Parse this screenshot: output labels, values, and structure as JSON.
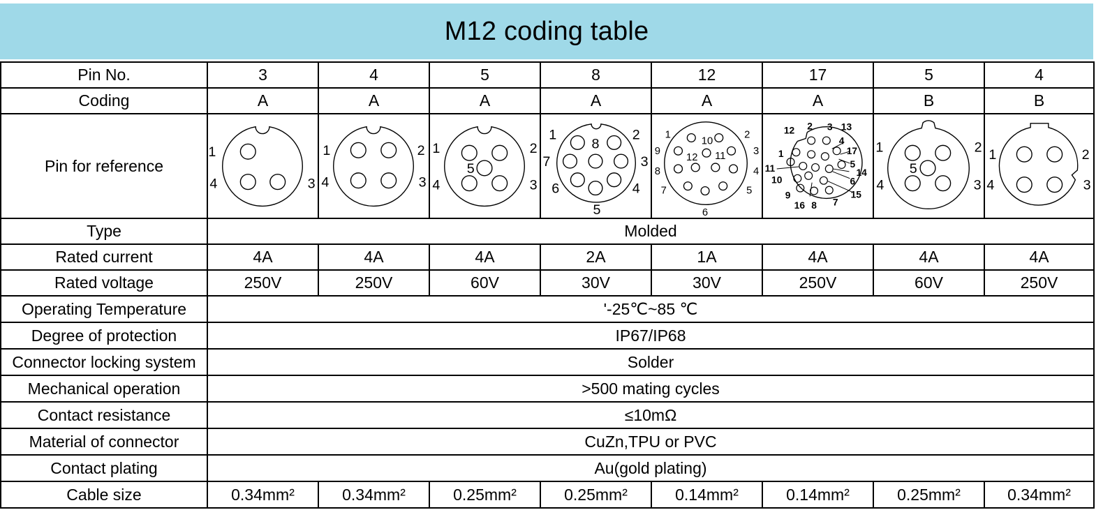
{
  "title": "M12 coding table",
  "rows": {
    "pin_no": {
      "label": "Pin No.",
      "values": [
        "3",
        "4",
        "5",
        "8",
        "12",
        "17",
        "5",
        "4"
      ]
    },
    "coding": {
      "label": "Coding",
      "values": [
        "A",
        "A",
        "A",
        "A",
        "A",
        "A",
        "B",
        "B"
      ]
    },
    "pin_ref": {
      "label": "Pin for reference",
      "diagrams": [
        {
          "outer": [
            "1",
            "4",
            "3"
          ]
        },
        {
          "outer": [
            "1",
            "2",
            "4",
            "3"
          ]
        },
        {
          "outer": [
            "1",
            "2",
            "4",
            "3"
          ],
          "inner": [
            "5"
          ]
        },
        {
          "outer": [
            "1",
            "2",
            "7",
            "3",
            "6",
            "4",
            "5"
          ],
          "inner": [
            "8"
          ]
        },
        {
          "outer": [
            "1",
            "2",
            "9",
            "3",
            "8",
            "4",
            "7",
            "5",
            "6"
          ],
          "inner": [
            "10",
            "12",
            "11"
          ]
        },
        {
          "outer": [
            "12",
            "2",
            "3",
            "13",
            "4",
            "1",
            "17",
            "5",
            "11",
            "14",
            "10",
            "6",
            "15",
            "9",
            "16",
            "8",
            "7"
          ]
        },
        {
          "outer": [
            "1",
            "2",
            "4",
            "3"
          ],
          "inner": [
            "5"
          ]
        },
        {
          "outer": [
            "1",
            "2",
            "4",
            "3"
          ]
        }
      ]
    },
    "type": {
      "label": "Type",
      "value": "Molded"
    },
    "rated_current": {
      "label": "Rated current",
      "values": [
        "4A",
        "4A",
        "4A",
        "2A",
        "1A",
        "4A",
        "4A",
        "4A"
      ]
    },
    "rated_voltage": {
      "label": "Rated voltage",
      "values": [
        "250V",
        "250V",
        "60V",
        "30V",
        "30V",
        "250V",
        "60V",
        "250V"
      ]
    },
    "operating_temperature": {
      "label": "Operating Temperature",
      "value": "'-25℃~85 ℃"
    },
    "degree_of_protection": {
      "label": "Degree of protection",
      "value": "IP67/IP68"
    },
    "locking_system": {
      "label": "Connector locking system",
      "value": "Solder"
    },
    "mechanical_operation": {
      "label": "Mechanical operation",
      "value": ">500 mating cycles"
    },
    "contact_resistance": {
      "label": "Contact resistance",
      "value": "≤10mΩ"
    },
    "material": {
      "label": "Material of connector",
      "value": "CuZn,TPU or PVC"
    },
    "contact_plating": {
      "label": "Contact plating",
      "value": "Au(gold plating)"
    },
    "cable_size": {
      "label": "Cable size",
      "values": [
        "0.34mm²",
        "0.34mm²",
        "0.25mm²",
        "0.25mm²",
        "0.14mm²",
        "0.14mm²",
        "0.25mm²",
        "0.34mm²"
      ]
    }
  },
  "colors": {
    "title_band": "#9fd9e8",
    "border": "#000000"
  }
}
